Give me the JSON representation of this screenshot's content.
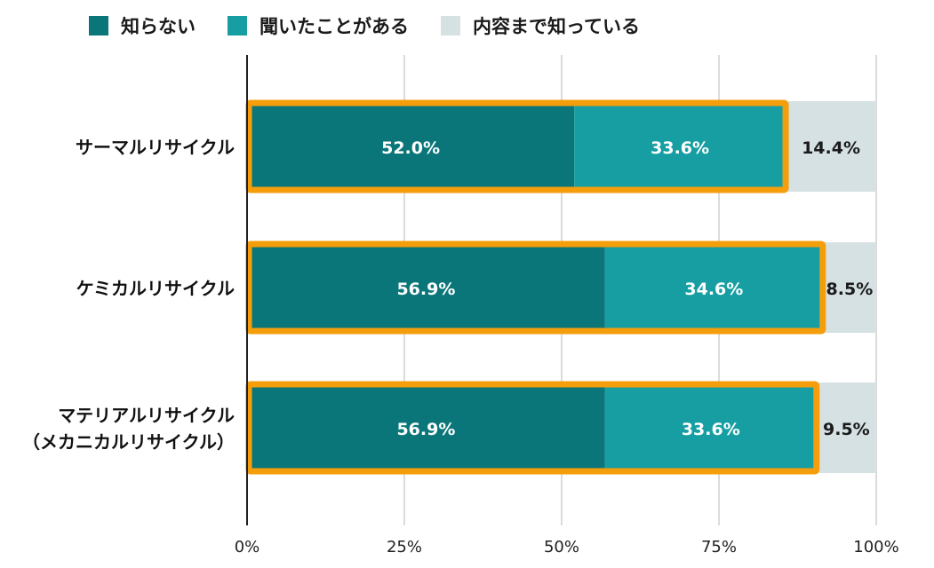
{
  "chart_data": {
    "type": "bar",
    "orientation": "horizontal",
    "stacked": true,
    "categories": [
      "サーマルリサイクル",
      "ケミカルリサイクル",
      "マテリアルリサイクル\n（メカニカルリサイクル）"
    ],
    "series": [
      {
        "name": "知らない",
        "values": [
          52.0,
          56.9,
          56.9
        ],
        "labels": [
          "52.0%",
          "56.9%",
          "56.9%"
        ],
        "color": "#0b7679"
      },
      {
        "name": "聞いたことがある",
        "values": [
          33.6,
          34.6,
          33.6
        ],
        "labels": [
          "33.6%",
          "34.6%",
          "33.6%"
        ],
        "color": "#169ea3"
      },
      {
        "name": "内容まで知っている",
        "values": [
          14.4,
          8.5,
          9.5
        ],
        "labels": [
          "14.4%",
          "8.5%",
          "9.5%"
        ],
        "color": "#d6e1e3"
      }
    ],
    "xlim": [
      0,
      100
    ],
    "x_ticks": [
      "0%",
      "25%",
      "50%",
      "75%",
      "100%"
    ],
    "grid": true,
    "legend_position": "top",
    "highlight_color": "#f59e0b"
  }
}
